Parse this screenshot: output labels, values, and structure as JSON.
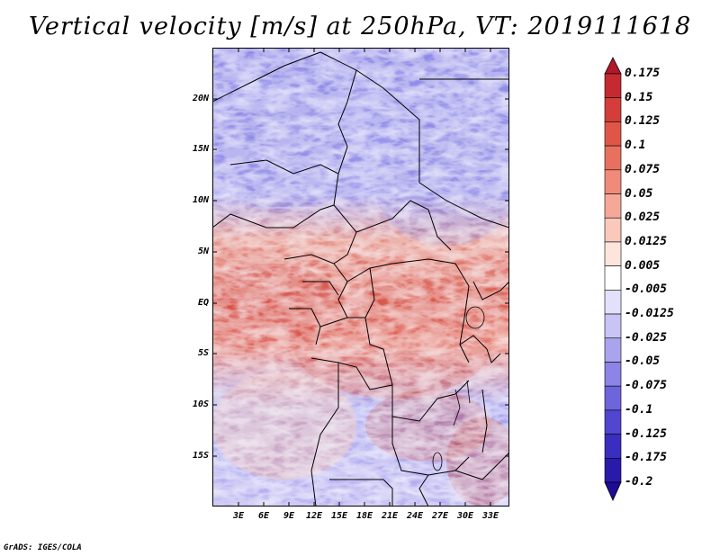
{
  "title": "Vertical velocity [m/s] at 250hPa, VT: 2019111618",
  "footer": "GrADS: IGES/COLA",
  "map": {
    "lat_labels": [
      "20N",
      "15N",
      "10N",
      "5N",
      "EQ",
      "5S",
      "10S",
      "15S"
    ],
    "lon_labels": [
      "3E",
      "6E",
      "9E",
      "12E",
      "15E",
      "18E",
      "21E",
      "24E",
      "27E",
      "30E",
      "33E"
    ],
    "field": "vertical velocity",
    "units": "m/s",
    "level": "250hPa"
  },
  "colorbar": {
    "labels": [
      "0.175",
      "0.15",
      "0.125",
      "0.1",
      "0.075",
      "0.05",
      "0.025",
      "0.0125",
      "0.005",
      "-0.005",
      "-0.0125",
      "-0.025",
      "-0.05",
      "-0.075",
      "-0.1",
      "-0.125",
      "-0.175",
      "-0.2"
    ],
    "colors": [
      "#b2182b",
      "#c42a30",
      "#d43d3a",
      "#e05548",
      "#e8705f",
      "#f08a7a",
      "#f6a898",
      "#fbc8bc",
      "#fde4dc",
      "#ffffff",
      "#e2e0fa",
      "#c8c4f4",
      "#aaa4ee",
      "#8c84e6",
      "#6e64dc",
      "#5046d0",
      "#3a2ec0",
      "#2a1aac",
      "#1c0c96"
    ]
  }
}
